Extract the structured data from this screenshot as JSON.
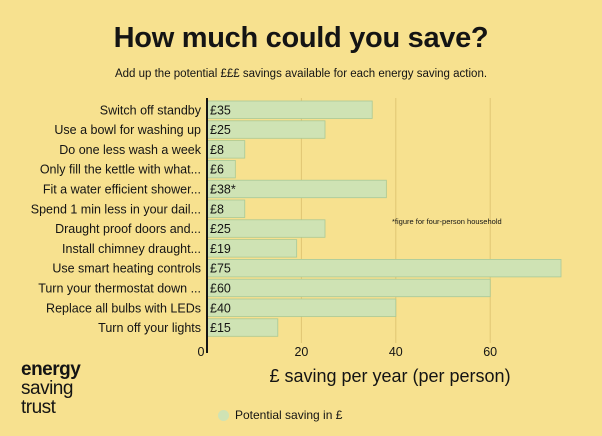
{
  "header": {
    "title": "How much could you save?",
    "subtitle": "Add up the potential  £££ savings available for each energy saving action."
  },
  "logo": {
    "line1": "energy",
    "line2": "saving",
    "line3": "trust"
  },
  "colors": {
    "background": "#f7e18f",
    "bar_fill": "#cfe3b4",
    "bar_stroke": "#a9c996"
  },
  "chart_data": {
    "type": "bar",
    "orientation": "horizontal",
    "categories": [
      "Switch off standby",
      "Use a bowl for washing up",
      "Do one less wash a week",
      "Only fill the kettle with what...",
      "Fit a water efficient shower...",
      "Spend 1 min less in your dail...",
      "Draught proof doors and...",
      "Install chimney draught...",
      "Use smart heating controls",
      "Turn your thermostat down ...",
      "Replace all bulbs with LEDs",
      "Turn off your lights"
    ],
    "series": [
      {
        "name": "Potential saving in £",
        "values": [
          35,
          25,
          8,
          6,
          38,
          8,
          25,
          19,
          75,
          60,
          40,
          15
        ]
      }
    ],
    "data_labels": [
      "£35",
      "£25",
      "£8",
      "£6",
      "£38*",
      "£8",
      "£25",
      "£19",
      "£75",
      "£60",
      "£40",
      "£15"
    ],
    "xlabel": "£ saving per year (per person)",
    "ylabel": "",
    "xlim": [
      0,
      76
    ],
    "xticks": [
      0,
      20,
      40,
      60
    ],
    "grid": true,
    "legend_position": "bottom",
    "annotation": "*figure for four-person household"
  }
}
